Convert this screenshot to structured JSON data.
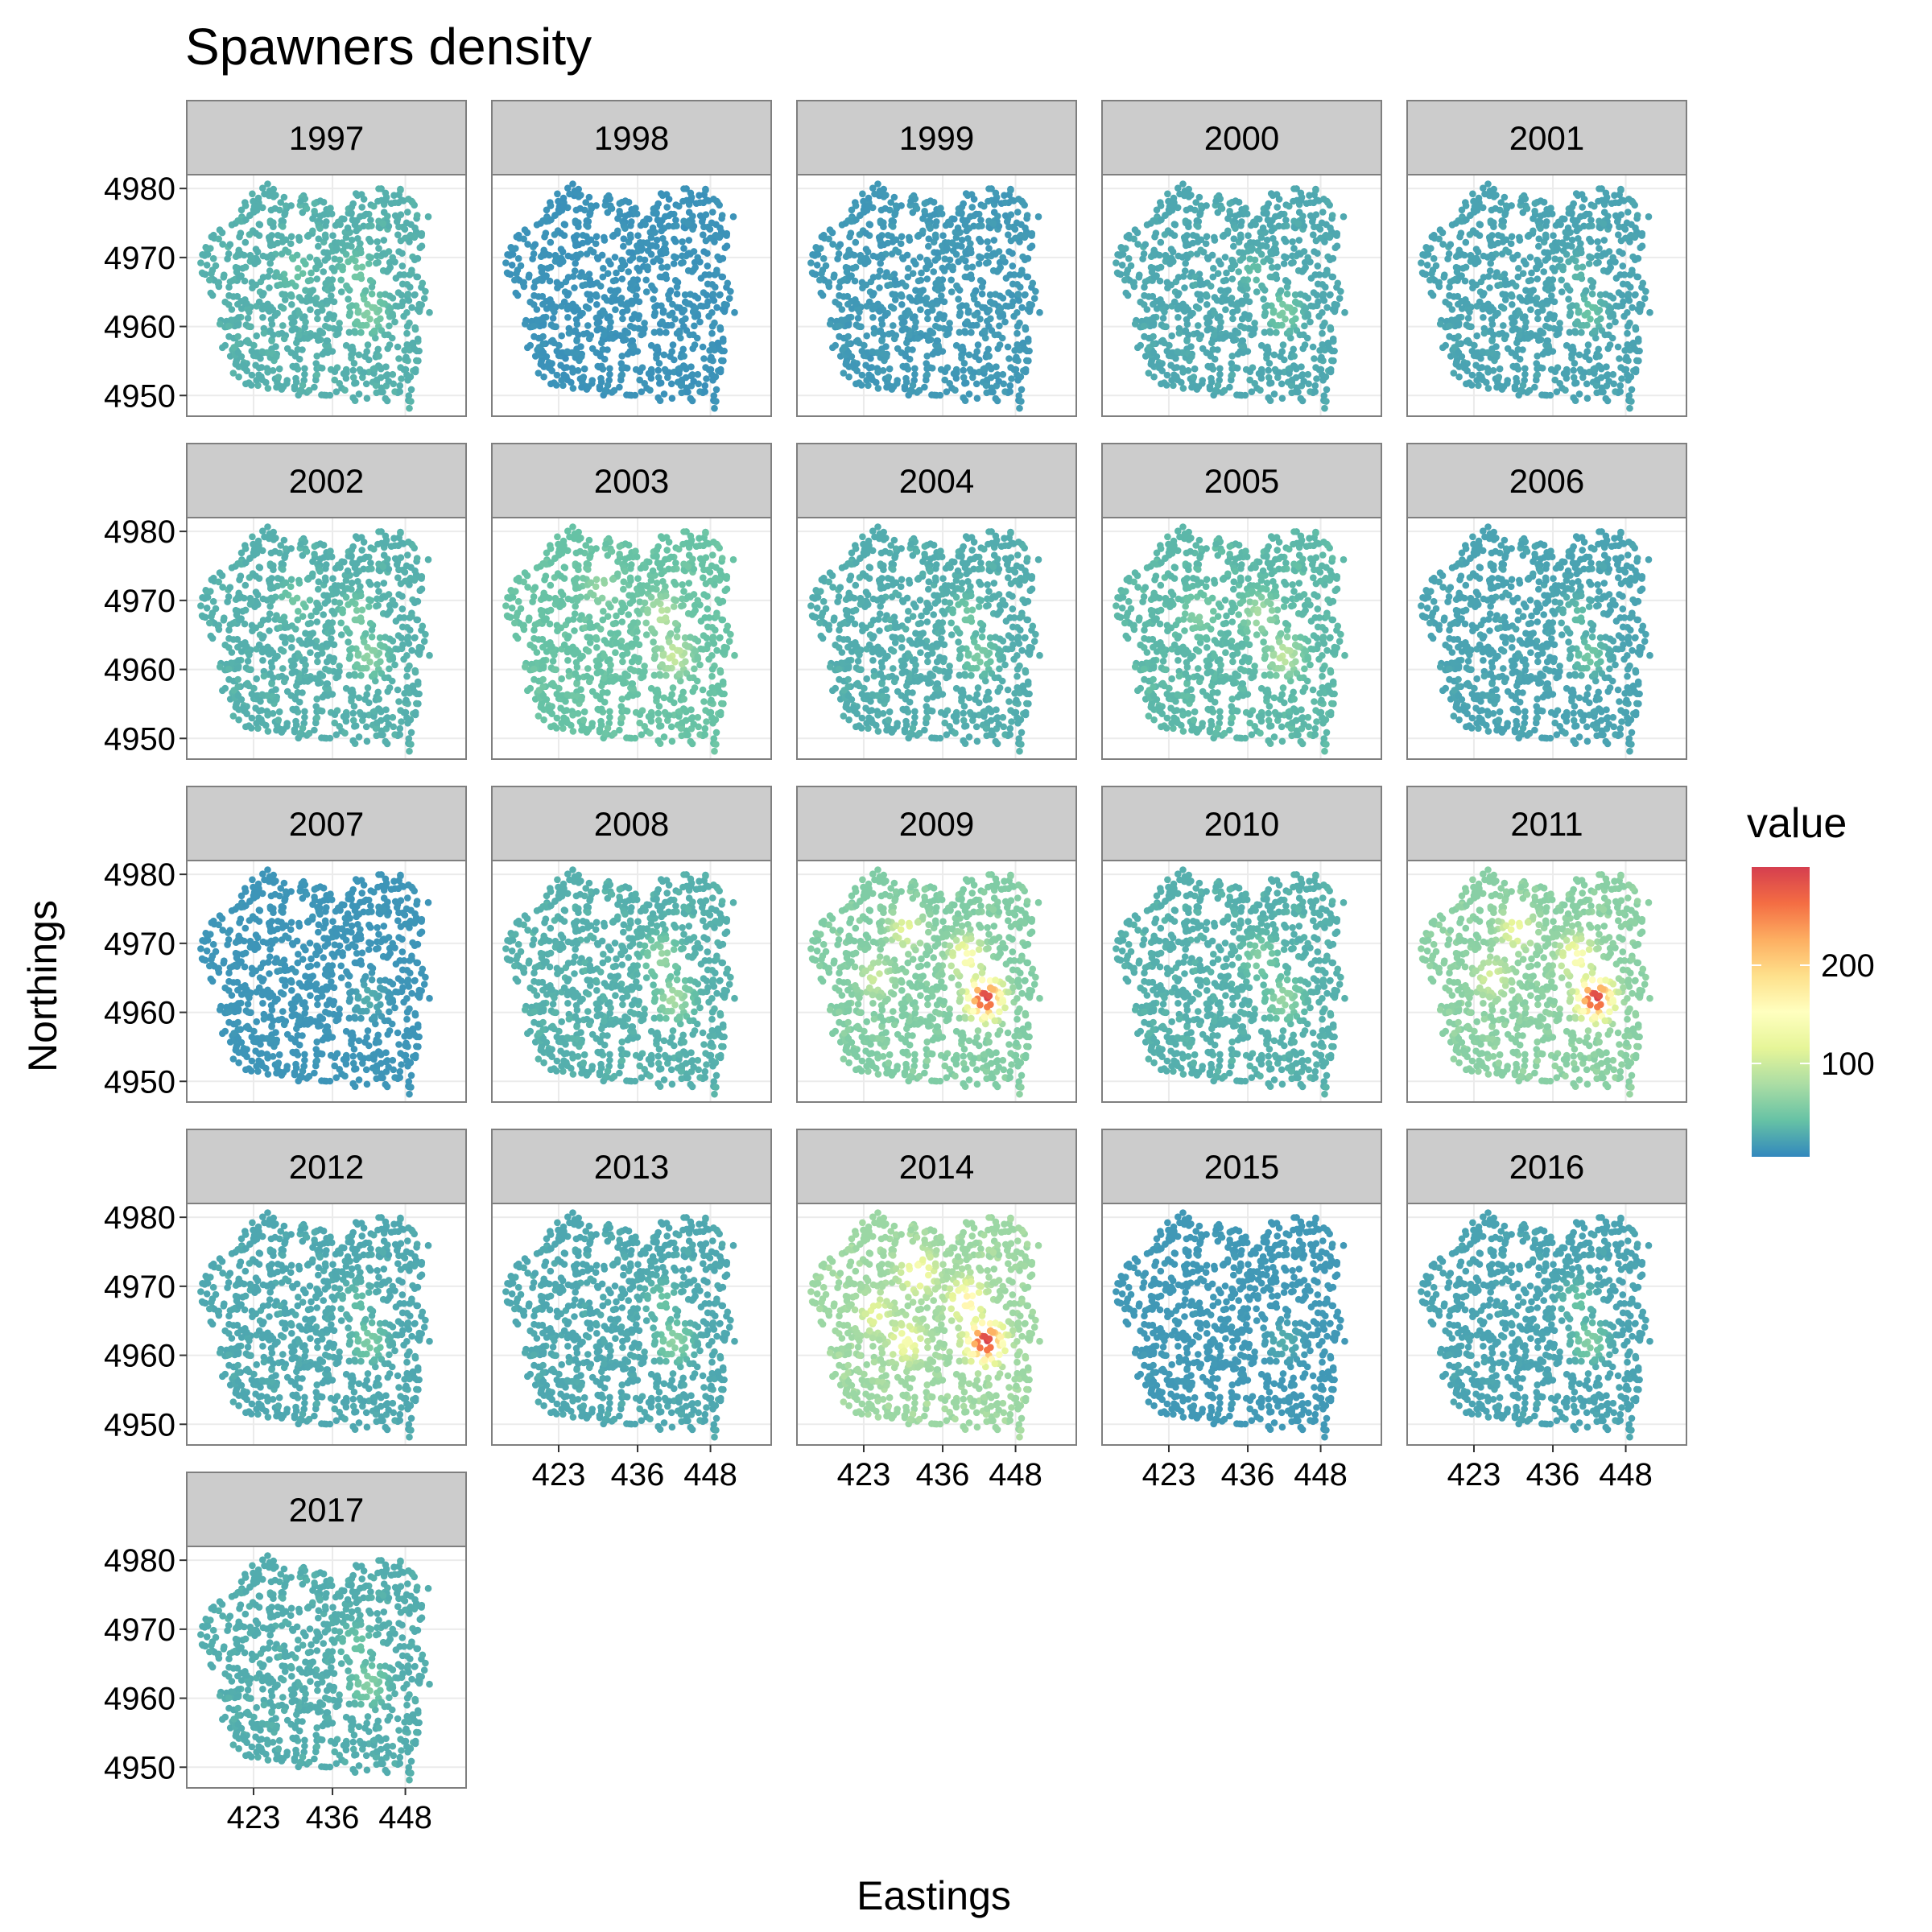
{
  "chart_data": {
    "type": "scatter",
    "subtype": "faceted-map",
    "title": "Spawners density",
    "xlabel": "Eastings",
    "ylabel": "Northings",
    "x_ticks": [
      423,
      436,
      448
    ],
    "y_ticks": [
      4950,
      4960,
      4970,
      4980
    ],
    "xlim": [
      412,
      458
    ],
    "ylim": [
      4947,
      4982
    ],
    "grid": true,
    "legend": {
      "title": "value",
      "position": "right",
      "type": "colorbar",
      "range": [
        5,
        300
      ],
      "ticks": [
        100,
        200
      ],
      "colors": [
        "#3288bd",
        "#66c2a5",
        "#abdda4",
        "#e6f598",
        "#ffffbf",
        "#fee08b",
        "#fdae61",
        "#f46d43",
        "#d53e4f"
      ]
    },
    "facets": [
      {
        "label": "1997",
        "baseline": 30,
        "hotspots": [
          {
            "x": 440,
            "y": 4968,
            "value": 50
          },
          {
            "x": 442,
            "y": 4962,
            "value": 60
          },
          {
            "x": 430,
            "y": 4968,
            "value": 45
          }
        ]
      },
      {
        "label": "1998",
        "baseline": 12,
        "hotspots": []
      },
      {
        "label": "1999",
        "baseline": 16,
        "hotspots": []
      },
      {
        "label": "2000",
        "baseline": 25,
        "hotspots": [
          {
            "x": 442,
            "y": 4962,
            "value": 55
          },
          {
            "x": 437,
            "y": 4968,
            "value": 40
          }
        ]
      },
      {
        "label": "2001",
        "baseline": 22,
        "hotspots": [
          {
            "x": 442,
            "y": 4962,
            "value": 45
          },
          {
            "x": 440,
            "y": 4968,
            "value": 35
          }
        ]
      },
      {
        "label": "2002",
        "baseline": 30,
        "hotspots": [
          {
            "x": 430,
            "y": 4970,
            "value": 50
          },
          {
            "x": 440,
            "y": 4968,
            "value": 55
          },
          {
            "x": 442,
            "y": 4962,
            "value": 65
          }
        ]
      },
      {
        "label": "2003",
        "baseline": 42,
        "hotspots": [
          {
            "x": 440,
            "y": 4968,
            "value": 90
          },
          {
            "x": 442,
            "y": 4962,
            "value": 100
          },
          {
            "x": 430,
            "y": 4972,
            "value": 70
          }
        ]
      },
      {
        "label": "2004",
        "baseline": 28,
        "hotspots": [
          {
            "x": 440,
            "y": 4968,
            "value": 50
          },
          {
            "x": 442,
            "y": 4962,
            "value": 55
          }
        ]
      },
      {
        "label": "2005",
        "baseline": 35,
        "hotspots": [
          {
            "x": 438,
            "y": 4968,
            "value": 80
          },
          {
            "x": 442,
            "y": 4962,
            "value": 95
          },
          {
            "x": 428,
            "y": 4968,
            "value": 60
          }
        ]
      },
      {
        "label": "2006",
        "baseline": 22,
        "hotspots": [
          {
            "x": 442,
            "y": 4962,
            "value": 50
          },
          {
            "x": 440,
            "y": 4968,
            "value": 40
          }
        ]
      },
      {
        "label": "2007",
        "baseline": 13,
        "hotspots": [
          {
            "x": 442,
            "y": 4962,
            "value": 30
          }
        ]
      },
      {
        "label": "2008",
        "baseline": 30,
        "hotspots": [
          {
            "x": 440,
            "y": 4968,
            "value": 70
          },
          {
            "x": 442,
            "y": 4962,
            "value": 80
          }
        ]
      },
      {
        "label": "2009",
        "baseline": 55,
        "hotspots": [
          {
            "x": 440,
            "y": 4968,
            "value": 150
          },
          {
            "x": 443,
            "y": 4962,
            "value": 300
          },
          {
            "x": 430,
            "y": 4972,
            "value": 120
          },
          {
            "x": 425,
            "y": 4965,
            "value": 100
          }
        ]
      },
      {
        "label": "2010",
        "baseline": 30,
        "hotspots": [
          {
            "x": 438,
            "y": 4968,
            "value": 60
          },
          {
            "x": 442,
            "y": 4962,
            "value": 70
          }
        ]
      },
      {
        "label": "2011",
        "baseline": 60,
        "hotspots": [
          {
            "x": 440,
            "y": 4968,
            "value": 150
          },
          {
            "x": 443,
            "y": 4962,
            "value": 300
          },
          {
            "x": 430,
            "y": 4972,
            "value": 130
          },
          {
            "x": 426,
            "y": 4965,
            "value": 110
          }
        ]
      },
      {
        "label": "2012",
        "baseline": 25,
        "hotspots": [
          {
            "x": 442,
            "y": 4962,
            "value": 55
          },
          {
            "x": 440,
            "y": 4968,
            "value": 40
          }
        ]
      },
      {
        "label": "2013",
        "baseline": 25,
        "hotspots": [
          {
            "x": 442,
            "y": 4962,
            "value": 65
          },
          {
            "x": 440,
            "y": 4968,
            "value": 45
          }
        ]
      },
      {
        "label": "2014",
        "baseline": 70,
        "hotspots": [
          {
            "x": 440,
            "y": 4968,
            "value": 170
          },
          {
            "x": 443,
            "y": 4962,
            "value": 300
          },
          {
            "x": 432,
            "y": 4972,
            "value": 150
          },
          {
            "x": 430,
            "y": 4962,
            "value": 140
          },
          {
            "x": 425,
            "y": 4966,
            "value": 120
          }
        ]
      },
      {
        "label": "2015",
        "baseline": 15,
        "hotspots": [
          {
            "x": 442,
            "y": 4962,
            "value": 30
          }
        ]
      },
      {
        "label": "2016",
        "baseline": 22,
        "hotspots": [
          {
            "x": 442,
            "y": 4962,
            "value": 60
          },
          {
            "x": 440,
            "y": 4968,
            "value": 45
          }
        ]
      },
      {
        "label": "2017",
        "baseline": 28,
        "hotspots": [
          {
            "x": 442,
            "y": 4962,
            "value": 60
          },
          {
            "x": 440,
            "y": 4968,
            "value": 45
          }
        ]
      }
    ]
  }
}
